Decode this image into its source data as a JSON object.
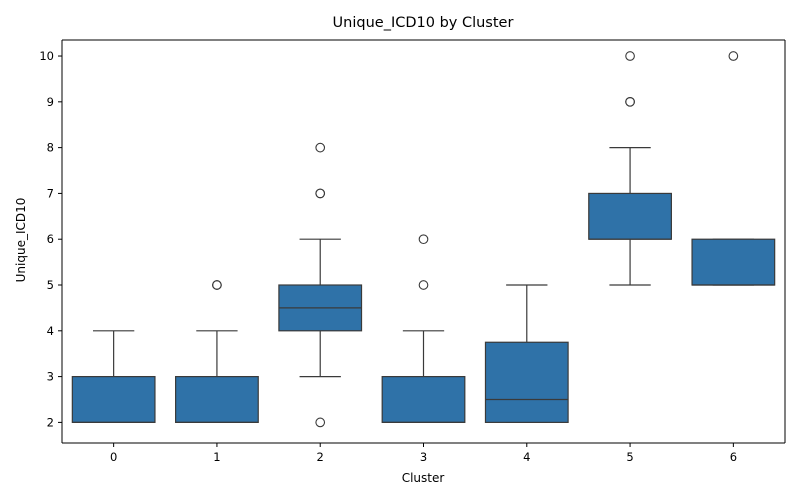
{
  "chart_data": {
    "type": "box",
    "title": "Unique_ICD10 by Cluster",
    "xlabel": "Cluster",
    "ylabel": "Unique_ICD10",
    "categories": [
      "0",
      "1",
      "2",
      "3",
      "4",
      "5",
      "6"
    ],
    "ylim": [
      1.55,
      10.35
    ],
    "yticks": [
      2,
      3,
      4,
      5,
      6,
      7,
      8,
      9,
      10
    ],
    "grid": false,
    "box_color": "#2f72a8",
    "line_color": "#3a3a3a",
    "boxes": [
      {
        "category": "0",
        "whisker_low": 2,
        "q1": 2,
        "median": 2,
        "q3": 3,
        "whisker_high": 4,
        "outliers": []
      },
      {
        "category": "1",
        "whisker_low": 2,
        "q1": 2,
        "median": 2,
        "q3": 3,
        "whisker_high": 4,
        "outliers": [
          5,
          5
        ]
      },
      {
        "category": "2",
        "whisker_low": 3,
        "q1": 4,
        "median": 4.5,
        "q3": 5,
        "whisker_high": 6,
        "outliers": [
          2,
          7,
          7,
          8
        ]
      },
      {
        "category": "3",
        "whisker_low": 2,
        "q1": 2,
        "median": 2,
        "q3": 3,
        "whisker_high": 4,
        "outliers": [
          5,
          6
        ]
      },
      {
        "category": "4",
        "whisker_low": 2,
        "q1": 2,
        "median": 2.5,
        "q3": 3.75,
        "whisker_high": 5,
        "outliers": []
      },
      {
        "category": "5",
        "whisker_low": 5,
        "q1": 6,
        "median": 6,
        "q3": 7,
        "whisker_high": 8,
        "outliers": [
          9,
          9,
          10
        ]
      },
      {
        "category": "6",
        "whisker_low": 5,
        "q1": 5,
        "median": 5,
        "q3": 6,
        "whisker_high": 6,
        "outliers": [
          10
        ]
      }
    ]
  }
}
